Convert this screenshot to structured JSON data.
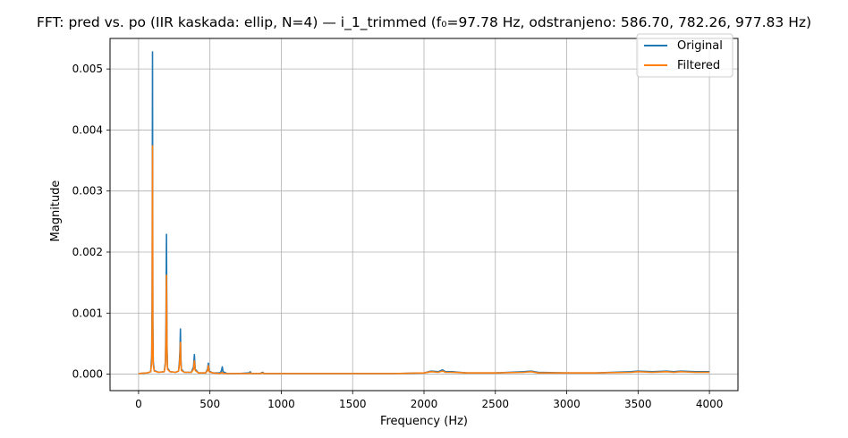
{
  "chart_data": {
    "type": "line",
    "title": "FFT: pred vs. po (IIR kaskada: ellip, N=4) — i_1_trimmed (f₀=97.78 Hz, odstranjeno: 586.70, 782.26, 977.83 Hz)",
    "xlabel": "Frequency (Hz)",
    "ylabel": "Magnitude",
    "xlim": [
      -200,
      4200
    ],
    "ylim": [
      -0.00027,
      0.0055
    ],
    "x_ticks": [
      0,
      500,
      1000,
      1500,
      2000,
      2500,
      3000,
      3500,
      4000
    ],
    "x_tick_labels": [
      "0",
      "500",
      "1000",
      "1500",
      "2000",
      "2500",
      "3000",
      "3500",
      "4000"
    ],
    "y_ticks": [
      0,
      0.001,
      0.002,
      0.003,
      0.004,
      0.005
    ],
    "y_tick_labels": [
      "0.000",
      "0.001",
      "0.002",
      "0.003",
      "0.004",
      "0.005"
    ],
    "grid": true,
    "legend_position": "top-right",
    "series": [
      {
        "name": "Original",
        "color": "#1f77b4",
        "x": [
          0,
          60,
          85,
          92,
          95,
          97.78,
          100,
          103,
          110,
          140,
          180,
          188,
          192,
          195.56,
          199,
          203,
          220,
          260,
          280,
          286,
          290,
          293.34,
          296,
          300,
          320,
          370,
          385,
          391.12,
          397,
          420,
          470,
          483,
          488.9,
          494,
          520,
          570,
          580,
          586.7,
          592,
          620,
          700,
          775,
          782.26,
          790,
          850,
          870,
          880,
          950,
          1000,
          1100,
          1300,
          1500,
          1800,
          2000,
          2050,
          2100,
          2130,
          2150,
          2200,
          2300,
          2500,
          2700,
          2750,
          2800,
          3000,
          3200,
          3450,
          3500,
          3600,
          3700,
          3750,
          3800,
          3900,
          4000
        ],
        "y": [
          1e-05,
          2e-05,
          4e-05,
          0.0003,
          0.0012,
          0.00528,
          0.0009,
          0.0002,
          6e-05,
          3e-05,
          4e-05,
          0.0002,
          0.0008,
          0.00229,
          0.0005,
          0.0001,
          4e-05,
          3e-05,
          5e-05,
          0.0002,
          0.0004,
          0.00074,
          0.0003,
          8e-05,
          3e-05,
          3e-05,
          0.00012,
          0.00032,
          8e-05,
          2e-05,
          2e-05,
          8e-05,
          0.00018,
          5e-05,
          2e-05,
          2e-05,
          5e-05,
          0.00012,
          4e-05,
          1e-05,
          1e-05,
          2e-05,
          4e-05,
          1e-05,
          1e-05,
          3e-05,
          1e-05,
          1e-05,
          1e-05,
          1e-05,
          1e-05,
          1e-05,
          1e-05,
          2e-05,
          5e-05,
          4e-05,
          7e-05,
          4e-05,
          4e-05,
          2e-05,
          2e-05,
          4e-05,
          5e-05,
          3e-05,
          2e-05,
          2e-05,
          4e-05,
          5e-05,
          4e-05,
          5e-05,
          4e-05,
          5e-05,
          4e-05,
          4e-05
        ]
      },
      {
        "name": "Filtered",
        "color": "#ff7f0e",
        "x": [
          0,
          60,
          85,
          92,
          95,
          97.78,
          100,
          103,
          110,
          140,
          180,
          188,
          192,
          195.56,
          199,
          203,
          220,
          260,
          280,
          286,
          290,
          293.34,
          296,
          300,
          320,
          370,
          385,
          391.12,
          397,
          420,
          470,
          483,
          488.9,
          494,
          520,
          570,
          580,
          586.7,
          592,
          620,
          700,
          775,
          782.26,
          790,
          850,
          870,
          880,
          950,
          1000,
          1100,
          1300,
          1500,
          1800,
          2000,
          2050,
          2100,
          2130,
          2150,
          2200,
          2300,
          2500,
          2700,
          2750,
          2800,
          3000,
          3200,
          3450,
          3500,
          3600,
          3700,
          3750,
          3800,
          3900,
          4000
        ],
        "y": [
          1e-05,
          2e-05,
          4e-05,
          0.0002,
          0.0009,
          0.00374,
          0.0007,
          0.00015,
          5e-05,
          3e-05,
          4e-05,
          0.00015,
          0.0006,
          0.00162,
          0.0004,
          8e-05,
          4e-05,
          3e-05,
          5e-05,
          0.00015,
          0.0003,
          0.00052,
          0.0002,
          6e-05,
          3e-05,
          3e-05,
          8e-05,
          0.00022,
          6e-05,
          2e-05,
          2e-05,
          6e-05,
          0.00014,
          4e-05,
          2e-05,
          1e-05,
          2e-05,
          3e-05,
          1e-05,
          1e-05,
          1e-05,
          1e-05,
          2e-05,
          1e-05,
          1e-05,
          2e-05,
          1e-05,
          1e-05,
          1e-05,
          1e-05,
          1e-05,
          1e-05,
          1e-05,
          2e-05,
          4e-05,
          3e-05,
          5e-05,
          3e-05,
          3e-05,
          2e-05,
          2e-05,
          3e-05,
          4e-05,
          2e-05,
          2e-05,
          2e-05,
          3e-05,
          4e-05,
          3e-05,
          4e-05,
          3e-05,
          4e-05,
          3e-05,
          3e-05
        ]
      }
    ]
  }
}
